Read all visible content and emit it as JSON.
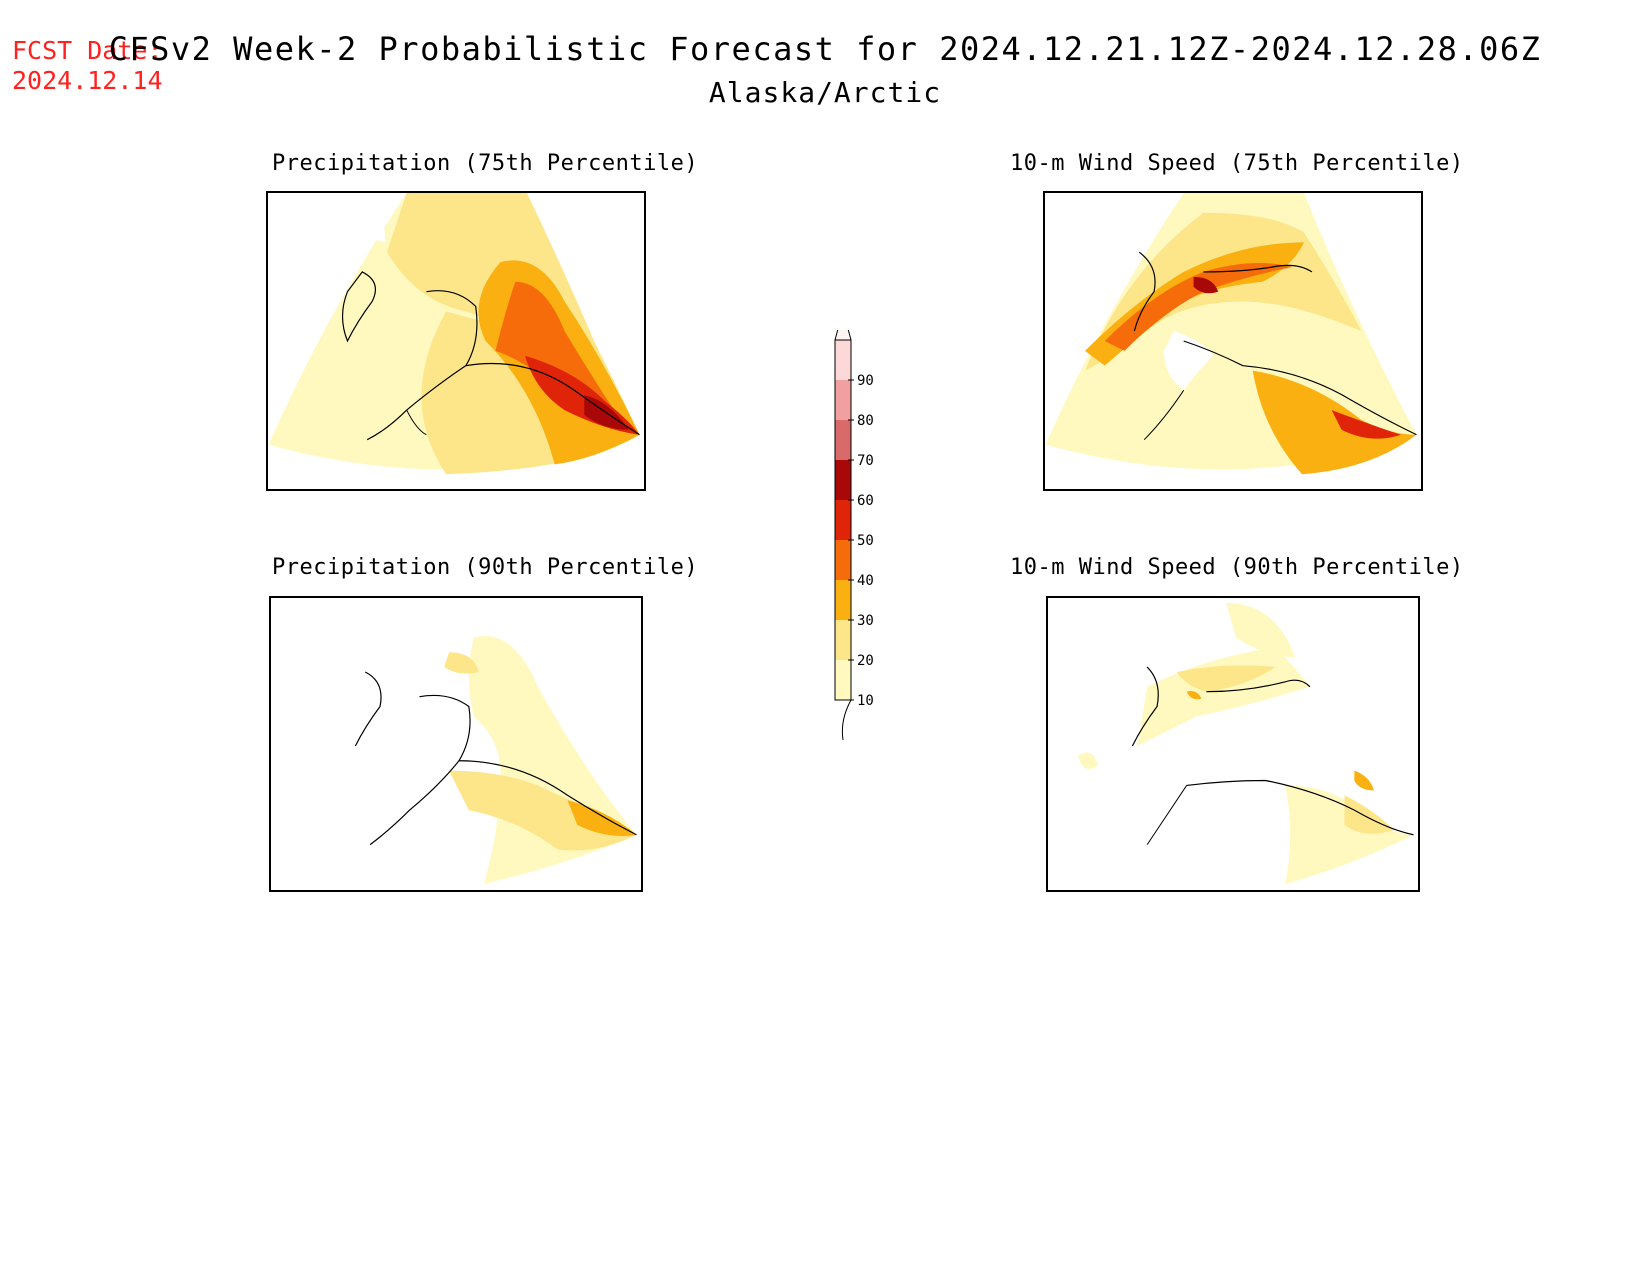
{
  "header": {
    "fcst_label": "FCST Date:",
    "fcst_date": "2024.12.14",
    "title": "CFSv2 Week-2 Probabilistic Forecast for 2024.12.21.12Z-2024.12.28.06Z",
    "subtitle": "Alaska/Arctic"
  },
  "panels": [
    {
      "title": "Precipitation (75th Percentile)"
    },
    {
      "title": "10-m Wind Speed (75th Percentile)"
    },
    {
      "title": "Precipitation (90th Percentile)"
    },
    {
      "title": "10-m Wind Speed (90th Percentile)"
    }
  ],
  "colorbar": {
    "levels": [
      "10",
      "20",
      "30",
      "40",
      "50",
      "60",
      "70",
      "80",
      "90"
    ],
    "colors": [
      "#fff9c0",
      "#fde68a",
      "#f9b010",
      "#f66c0a",
      "#e0240a",
      "#a80808",
      "#d86a6a",
      "#f0a0a0",
      "#fcd8d8"
    ]
  }
}
